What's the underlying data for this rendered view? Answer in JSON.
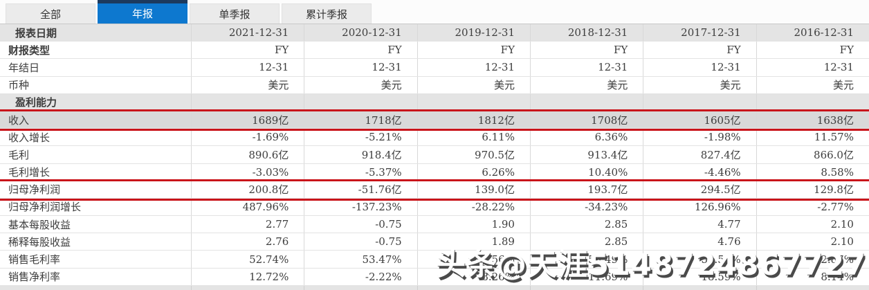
{
  "tabs": [
    {
      "label": "全部",
      "active": false
    },
    {
      "label": "年报",
      "active": true
    },
    {
      "label": "单季报",
      "active": false
    },
    {
      "label": "累计季报",
      "active": false
    }
  ],
  "table": {
    "header": {
      "label": "报表日期",
      "values": [
        "2021-12-31",
        "2020-12-31",
        "2019-12-31",
        "2018-12-31",
        "2017-12-31",
        "2016-12-31"
      ]
    },
    "rows": [
      {
        "label": "财报类型",
        "type": "data",
        "bold": true,
        "values": [
          "FY",
          "FY",
          "FY",
          "FY",
          "FY",
          "FY"
        ]
      },
      {
        "label": "年结日",
        "type": "data",
        "values": [
          "12-31",
          "12-31",
          "12-31",
          "12-31",
          "12-31",
          "12-31"
        ]
      },
      {
        "label": "币种",
        "type": "data",
        "values": [
          "美元",
          "美元",
          "美元",
          "美元",
          "美元",
          "美元"
        ]
      },
      {
        "label": "盈利能力",
        "type": "section",
        "values": [
          "",
          "",
          "",
          "",
          "",
          ""
        ]
      },
      {
        "label": "收入",
        "type": "data",
        "highlight": true,
        "shaded": true,
        "values": [
          "1689亿",
          "1718亿",
          "1812亿",
          "1708亿",
          "1605亿",
          "1638亿"
        ]
      },
      {
        "label": "收入增长",
        "type": "data",
        "values": [
          "-1.69%",
          "-5.21%",
          "6.11%",
          "6.36%",
          "-1.98%",
          "11.57%"
        ]
      },
      {
        "label": "毛利",
        "type": "data",
        "values": [
          "890.6亿",
          "918.4亿",
          "970.5亿",
          "913.4亿",
          "827.4亿",
          "866.0亿"
        ]
      },
      {
        "label": "毛利增长",
        "type": "data",
        "values": [
          "-3.03%",
          "-5.37%",
          "6.26%",
          "10.40%",
          "-4.46%",
          "8.58%"
        ]
      },
      {
        "label": "归母净利润",
        "type": "data",
        "highlight": true,
        "values": [
          "200.8亿",
          "-51.76亿",
          "139.0亿",
          "193.7亿",
          "294.5亿",
          "129.8亿"
        ]
      },
      {
        "label": "归母净利润增长",
        "type": "data",
        "values": [
          "487.96%",
          "-137.23%",
          "-28.22%",
          "-34.23%",
          "126.96%",
          "-2.77%"
        ]
      },
      {
        "label": "基本每股收益",
        "type": "data",
        "values": [
          "2.77",
          "-0.75",
          "1.90",
          "2.85",
          "4.77",
          "2.10"
        ]
      },
      {
        "label": "稀释每股收益",
        "type": "data",
        "values": [
          "2.76",
          "-0.75",
          "1.89",
          "2.85",
          "4.76",
          "2.10"
        ]
      },
      {
        "label": "销售毛利率",
        "type": "data",
        "values": [
          "52.74%",
          "53.47%",
          "53.56%",
          "53.49%",
          "51.53%",
          "52.87%"
        ]
      },
      {
        "label": "销售净利率",
        "type": "data",
        "values": [
          "12.72%",
          "-2.22%",
          "8.26%",
          "11.69%",
          "18.59%",
          "8.14%"
        ]
      },
      {
        "label": "",
        "type": "partial",
        "values": [
          "",
          "",
          "",
          "",
          "",
          ""
        ]
      }
    ]
  },
  "watermark": {
    "text": "头条@天涯5148724867727"
  },
  "colors": {
    "active_tab_blue": "#0d78cf",
    "active_tab_top_strip": "#1c3a5e",
    "highlight_box_red": "#c9141a",
    "header_row_grey": "#e4e4e4",
    "shaded_row_grey": "#d9d9d9"
  }
}
